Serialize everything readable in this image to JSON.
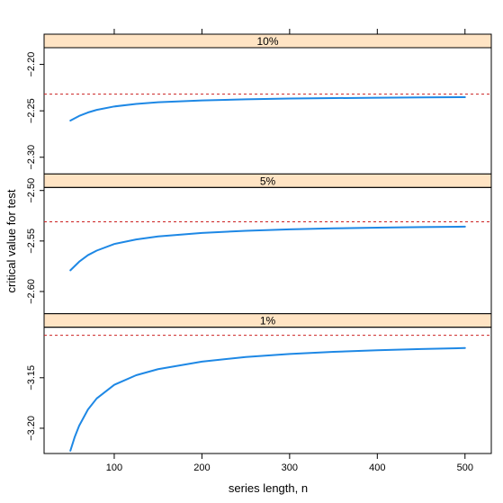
{
  "chart_data": {
    "type": "line",
    "xlabel": "series length, n",
    "ylabel": "critical value for test",
    "xlim": [
      20,
      530
    ],
    "x_ticks": [
      100,
      200,
      300,
      400,
      500
    ],
    "x_tick_labels": [
      "100",
      "200",
      "300",
      "400",
      "500"
    ],
    "colors": {
      "curve": "#1e88e5",
      "reference": "#cc2222",
      "strip": "#ffe4c4",
      "frame": "#000000"
    },
    "panels": [
      {
        "name": "10%",
        "ylim": [
          -2.318,
          -2.182
        ],
        "y_ticks": [
          -2.2,
          -2.25,
          -2.3
        ],
        "y_tick_labels": [
          "−2.20",
          "−2.25",
          "−2.30"
        ],
        "reference": -2.232,
        "x": [
          50,
          60,
          70,
          80,
          100,
          125,
          150,
          200,
          250,
          300,
          350,
          400,
          450,
          500
        ],
        "y": [
          -2.2605,
          -2.2555,
          -2.2518,
          -2.249,
          -2.2453,
          -2.2426,
          -2.2408,
          -2.2388,
          -2.2376,
          -2.2368,
          -2.2363,
          -2.2359,
          -2.2356,
          -2.2353
        ]
      },
      {
        "name": "5%",
        "ylim": [
          -2.622,
          -2.497
        ],
        "y_ticks": [
          -2.5,
          -2.55,
          -2.6
        ],
        "y_tick_labels": [
          "−2.50",
          "−2.55",
          "−2.60"
        ],
        "reference": -2.531,
        "x": [
          50,
          60,
          70,
          80,
          100,
          125,
          150,
          200,
          250,
          300,
          350,
          400,
          450,
          500
        ],
        "y": [
          -2.579,
          -2.5705,
          -2.564,
          -2.5595,
          -2.553,
          -2.5485,
          -2.5455,
          -2.542,
          -2.5399,
          -2.5385,
          -2.5375,
          -2.5368,
          -2.5362,
          -2.5358
        ]
      },
      {
        "name": "1%",
        "ylim": [
          -3.225,
          -3.1
        ],
        "y_ticks": [
          -3.15,
          -3.2
        ],
        "y_tick_labels": [
          "−3.15",
          "−3.20"
        ],
        "reference": -3.108,
        "x": [
          50,
          55,
          60,
          70,
          80,
          100,
          125,
          150,
          200,
          250,
          300,
          350,
          400,
          450,
          500
        ],
        "y": [
          -3.2222,
          -3.2085,
          -3.1975,
          -3.1815,
          -3.1705,
          -3.157,
          -3.1475,
          -3.1415,
          -3.134,
          -3.1295,
          -3.1265,
          -3.1244,
          -3.1228,
          -3.1216,
          -3.1206
        ]
      }
    ]
  }
}
